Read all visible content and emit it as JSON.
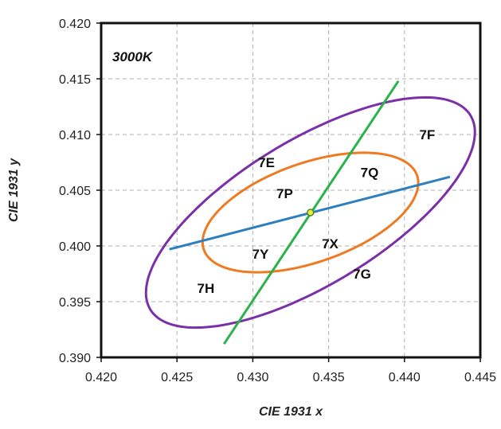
{
  "chart_data": {
    "type": "scatter",
    "title": "3000K",
    "xlabel": "CIE 1931 x",
    "ylabel": "CIE 1931 y",
    "xlim": [
      0.42,
      0.445
    ],
    "ylim": [
      0.39,
      0.42
    ],
    "x_ticks": [
      "0.420",
      "0.425",
      "0.430",
      "0.435",
      "0.440",
      "0.445"
    ],
    "y_ticks": [
      "0.390",
      "0.395",
      "0.400",
      "0.405",
      "0.410",
      "0.415",
      "0.420"
    ],
    "grid": true,
    "center": {
      "x": 0.4338,
      "y": 0.403
    },
    "ellipses": [
      {
        "label": "outer",
        "color": "#7b2fa8",
        "center": [
          0.4338,
          0.403
        ],
        "semi_major": 0.0138,
        "semi_minor": 0.00582,
        "tilt_deg": 43
      },
      {
        "label": "inner",
        "color": "#ee7b22",
        "center": [
          0.4338,
          0.403
        ],
        "semi_major": 0.00784,
        "semi_minor": 0.00423,
        "tilt_deg": 30
      }
    ],
    "lines": [
      {
        "color": "#2e7fc0",
        "points": [
          [
            0.4245,
            0.3997
          ],
          [
            0.443,
            0.4062
          ]
        ]
      },
      {
        "color": "#2bb24c",
        "points": [
          [
            0.4281,
            0.3912
          ],
          [
            0.4396,
            0.4148
          ]
        ]
      }
    ],
    "bin_labels": [
      {
        "text": "7F",
        "x": 0.4415,
        "y": 0.41
      },
      {
        "text": "7E",
        "x": 0.4309,
        "y": 0.4075
      },
      {
        "text": "7Q",
        "x": 0.4377,
        "y": 0.4066
      },
      {
        "text": "7P",
        "x": 0.4321,
        "y": 0.4047
      },
      {
        "text": "7X",
        "x": 0.4351,
        "y": 0.4002
      },
      {
        "text": "7Y",
        "x": 0.4305,
        "y": 0.3993
      },
      {
        "text": "7G",
        "x": 0.4372,
        "y": 0.3975
      },
      {
        "text": "7H",
        "x": 0.4269,
        "y": 0.3962
      }
    ],
    "colors": {
      "outer": "#7b2fa8",
      "inner": "#ee7b22",
      "line_a": "#2e7fc0",
      "line_b": "#2bb24c",
      "center_fill": "#f2e93a"
    }
  }
}
